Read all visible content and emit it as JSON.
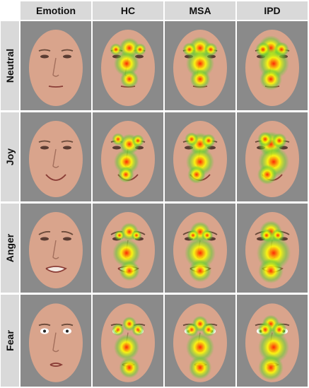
{
  "columns": [
    "Emotion",
    "HC",
    "MSA",
    "IPD"
  ],
  "rows": [
    "Neutral",
    "Joy",
    "Anger",
    "Fear"
  ],
  "colors": {
    "header_bg": "#d9d9d9",
    "cell_bg": "#8a8a8a",
    "skin": "#d9a48c",
    "heat_low": "#66cc33",
    "heat_mid": "#ffff00",
    "heat_high": "#ff2200"
  }
}
